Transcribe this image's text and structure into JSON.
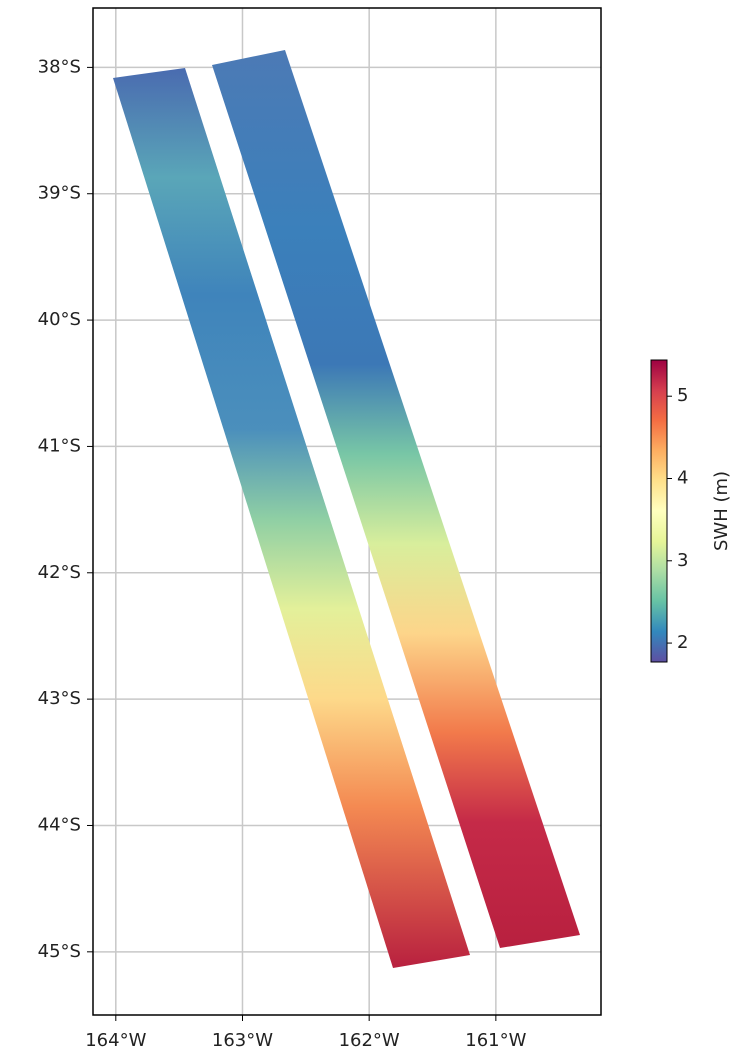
{
  "map": {
    "xlim": [
      -164.18,
      -160.17
    ],
    "ylim": [
      -45.5,
      -37.53
    ],
    "xticks": [
      {
        "value": -164,
        "label": "164°W"
      },
      {
        "value": -163,
        "label": "163°W"
      },
      {
        "value": -162,
        "label": "162°W"
      },
      {
        "value": -161,
        "label": "161°W"
      }
    ],
    "yticks": [
      {
        "value": -38,
        "label": "38°S"
      },
      {
        "value": -39,
        "label": "39°S"
      },
      {
        "value": -40,
        "label": "40°S"
      },
      {
        "value": -41,
        "label": "41°S"
      },
      {
        "value": -42,
        "label": "42°S"
      },
      {
        "value": -43,
        "label": "43°S"
      },
      {
        "value": -44,
        "label": "44°S"
      },
      {
        "value": -45,
        "label": "45°S"
      }
    ],
    "grid": true,
    "colorbar": {
      "label": "SWH (m)",
      "lim": [
        1.77,
        5.44
      ],
      "ticks": [
        2,
        3,
        4,
        5
      ],
      "colormap": [
        "#5e4fa2",
        "#3288bd",
        "#66c2a5",
        "#abdda4",
        "#e6f598",
        "#ffffbf",
        "#fee08b",
        "#fdae61",
        "#f46d43",
        "#d53e4f",
        "#9e0142"
      ]
    }
  }
}
